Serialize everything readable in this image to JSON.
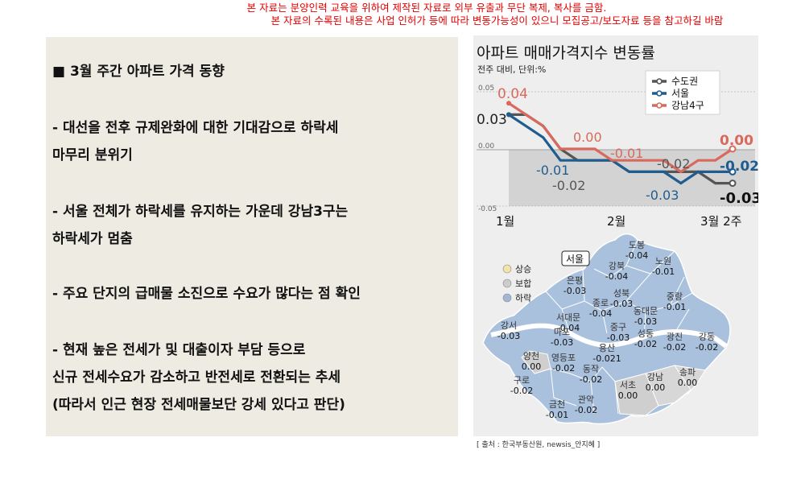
{
  "notice": {
    "line1": "본 자료는 분양인력 교육을 위하여 제작된 자료로 외부 유출과 무단 복제, 복사를 금함.",
    "line2": "본 자료의 수록된 내용은 사업 인허가 등에 따라 변동가능성이 있으니 모집공고/보도자료 등을 참고하길 바람"
  },
  "left": {
    "title": "■ 3월 주간 아파트 가격 동향",
    "bullets": [
      [
        "- 대선을 전후 규제완화에 대한 기대감으로 하락세",
        "  마무리 분위기"
      ],
      [
        "- 서울 전체가 하락세를 유지하는 가운데 강남3구는",
        "  하락세가 멈춤"
      ],
      [
        "- 주요 단지의 급매물 소진으로 수요가 많다는 점 확인"
      ],
      [
        "- 현재 높은 전세가 및 대출이자 부담 등으로",
        "  신규 전세수요가 감소하고 반전세로 전환되는 추세",
        "  (따라서 인근 현장 전세매물보단 강세 있다고 판단)"
      ]
    ]
  },
  "chart_data": [
    {
      "type": "line",
      "title": "아파트 매매가격지수 변동률",
      "subtitle": "전주 대비, 단위:%",
      "x_tick_labels": [
        "1월",
        "2월",
        "3월 2주"
      ],
      "y_tick_labels": [
        "0.05",
        "0.00",
        "-0.05"
      ],
      "ylim": [
        -0.05,
        0.05
      ],
      "legend_position": "top-right",
      "series": [
        {
          "name": "수도권",
          "color": "#555555",
          "values": [
            0.03,
            0.03,
            0.02,
            0.0,
            -0.01,
            -0.01,
            -0.01,
            -0.02,
            -0.02,
            -0.02,
            -0.02,
            -0.02,
            -0.03,
            -0.03
          ]
        },
        {
          "name": "서울",
          "color": "#1f5c8f",
          "values": [
            0.03,
            0.02,
            0.01,
            -0.01,
            -0.01,
            -0.01,
            -0.01,
            -0.02,
            -0.02,
            -0.02,
            -0.03,
            -0.02,
            -0.02,
            -0.02
          ]
        },
        {
          "name": "강남4구",
          "color": "#d9695c",
          "values": [
            0.04,
            0.03,
            0.02,
            0.0,
            0.0,
            0.0,
            -0.01,
            -0.01,
            -0.01,
            -0.01,
            -0.02,
            -0.01,
            -0.01,
            0.0
          ]
        }
      ],
      "annotations": [
        {
          "text": "0.04",
          "color": "#d9695c"
        },
        {
          "text": "0.03",
          "color": "#222222"
        },
        {
          "text": "0.00",
          "color": "#d9695c"
        },
        {
          "text": "-0.01",
          "color": "#d9695c"
        },
        {
          "text": "-0.01",
          "color": "#1f5c8f"
        },
        {
          "text": "-0.02",
          "color": "#555555"
        },
        {
          "text": "-0.02",
          "color": "#555555"
        },
        {
          "text": "-0.03",
          "color": "#1f5c8f"
        },
        {
          "text": "0.00",
          "color": "#d9695c"
        },
        {
          "text": "-0.02",
          "color": "#1f5c8f"
        },
        {
          "text": "-0.03",
          "color": "#111111"
        }
      ]
    },
    {
      "type": "map",
      "title": "서울",
      "legend": [
        {
          "label": "상승",
          "color": "#f3e3a6"
        },
        {
          "label": "보합",
          "color": "#cccccc"
        },
        {
          "label": "하락",
          "color": "#9fb8d6"
        }
      ],
      "districts": [
        {
          "name": "도봉",
          "value": "-0.04",
          "status": "하락"
        },
        {
          "name": "노원",
          "value": "-0.01",
          "status": "하락"
        },
        {
          "name": "강북",
          "value": "-0.04",
          "status": "하락"
        },
        {
          "name": "은평",
          "value": "-0.03",
          "status": "하락"
        },
        {
          "name": "성북",
          "value": "-0.03",
          "status": "하락"
        },
        {
          "name": "중랑",
          "value": "-0.01",
          "status": "하락"
        },
        {
          "name": "종로",
          "value": "-0.04",
          "status": "하락"
        },
        {
          "name": "동대문",
          "value": "-0.03",
          "status": "하락"
        },
        {
          "name": "서대문",
          "value": "-0.04",
          "status": "하락"
        },
        {
          "name": "중구",
          "value": "-0.03",
          "status": "하락"
        },
        {
          "name": "마포",
          "value": "-0.03",
          "status": "하락"
        },
        {
          "name": "성동",
          "value": "-0.02",
          "status": "하락"
        },
        {
          "name": "광진",
          "value": "-0.02",
          "status": "하락"
        },
        {
          "name": "강동",
          "value": "-0.02",
          "status": "하락"
        },
        {
          "name": "강서",
          "value": "-0.03",
          "status": "하락"
        },
        {
          "name": "용산",
          "value": "-0.021",
          "status": "하락"
        },
        {
          "name": "양천",
          "value": "0.00",
          "status": "보합"
        },
        {
          "name": "영등포",
          "value": "-0.02",
          "status": "하락"
        },
        {
          "name": "동작",
          "value": "-0.02",
          "status": "하락"
        },
        {
          "name": "구로",
          "value": "-0.02",
          "status": "하락"
        },
        {
          "name": "서초",
          "value": "0.00",
          "status": "보합"
        },
        {
          "name": "강남",
          "value": "0.00",
          "status": "보합"
        },
        {
          "name": "송파",
          "value": "0.00",
          "status": "보합"
        },
        {
          "name": "금천",
          "value": "-0.01",
          "status": "하락"
        },
        {
          "name": "관악",
          "value": "-0.02",
          "status": "하락"
        }
      ]
    }
  ],
  "source": "[ 출처 : 한국부동산원, newsis_안지혜 ]"
}
